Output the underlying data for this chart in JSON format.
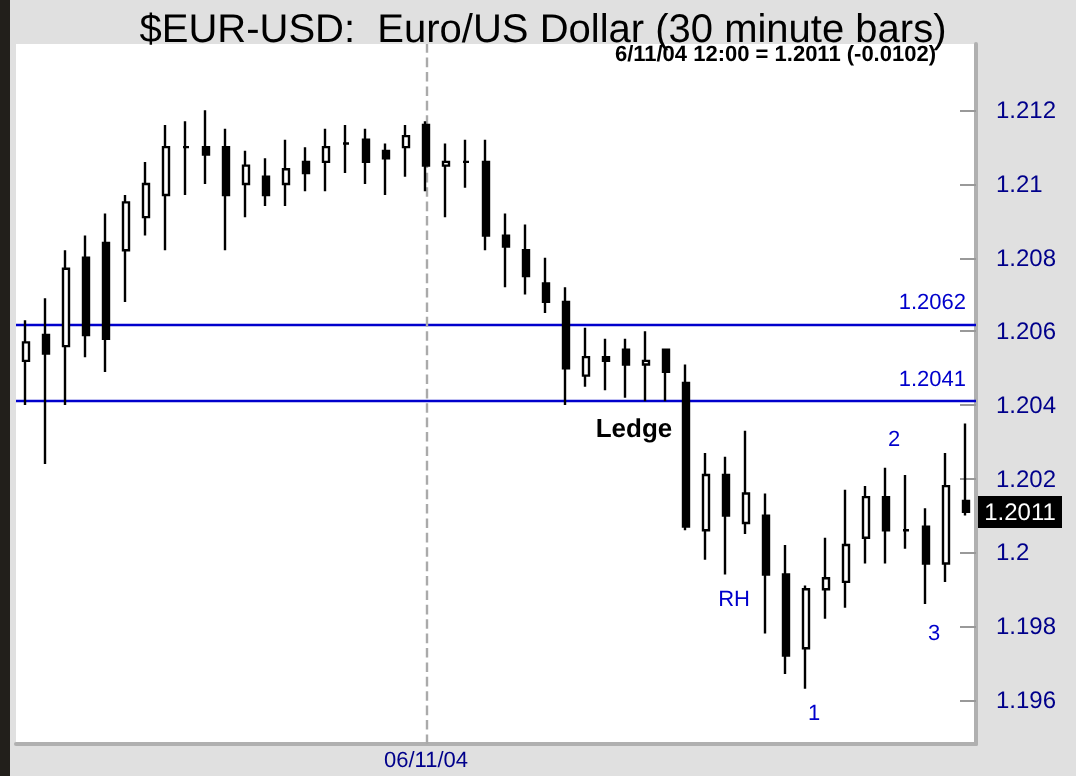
{
  "chart_data": {
    "type": "candlestick",
    "title": "$EUR-USD:  Euro/US Dollar (30 minute bars)",
    "categories": [
      null,
      null,
      null,
      null,
      null,
      null,
      null,
      null,
      null,
      null,
      null,
      null,
      null,
      null,
      null,
      null,
      null,
      null,
      null,
      null,
      "06/11/04",
      null,
      null,
      null,
      null,
      null,
      null,
      null,
      null,
      null,
      null,
      null,
      null,
      null,
      null,
      null,
      null,
      null,
      null,
      null,
      null,
      null,
      null,
      null,
      null,
      null,
      null,
      null
    ],
    "color": "#000000",
    "ohlc": [
      [
        1.2052,
        1.2063,
        1.204,
        1.2057
      ],
      [
        1.2059,
        1.2069,
        1.2024,
        1.2054
      ],
      [
        1.2056,
        1.2082,
        1.204,
        1.2077
      ],
      [
        1.208,
        1.2086,
        1.2053,
        1.2059
      ],
      [
        1.2084,
        1.2092,
        1.2049,
        1.2058
      ],
      [
        1.2082,
        1.2097,
        1.2068,
        1.2095
      ],
      [
        1.2091,
        1.2106,
        1.2086,
        1.21
      ],
      [
        1.2097,
        1.2116,
        1.2082,
        1.211
      ],
      [
        1.211,
        1.2117,
        1.2097,
        1.211
      ],
      [
        1.211,
        1.212,
        1.21,
        1.2108
      ],
      [
        1.211,
        1.2115,
        1.2082,
        1.2097
      ],
      [
        1.21,
        1.2109,
        1.2091,
        1.2105
      ],
      [
        1.2102,
        1.2107,
        1.2094,
        1.2097
      ],
      [
        1.21,
        1.2112,
        1.2094,
        1.2104
      ],
      [
        1.2106,
        1.211,
        1.2098,
        1.2103
      ],
      [
        1.2106,
        1.2115,
        1.2098,
        1.211
      ],
      [
        1.2111,
        1.2116,
        1.2103,
        1.2111
      ],
      [
        1.2112,
        1.2115,
        1.21,
        1.2106
      ],
      [
        1.2109,
        1.2111,
        1.2097,
        1.2107
      ],
      [
        1.211,
        1.2116,
        1.2102,
        1.2113
      ],
      [
        1.2116,
        1.2117,
        1.2098,
        1.2105
      ],
      [
        1.2105,
        1.2111,
        1.2091,
        1.2106
      ],
      [
        1.2106,
        1.2112,
        1.2099,
        1.2106
      ],
      [
        1.2106,
        1.2112,
        1.2082,
        1.2086
      ],
      [
        1.2086,
        1.2092,
        1.2072,
        1.2083
      ],
      [
        1.2082,
        1.2089,
        1.207,
        1.2075
      ],
      [
        1.2073,
        1.208,
        1.2065,
        1.2068
      ],
      [
        1.2068,
        1.2072,
        1.204,
        1.205
      ],
      [
        1.2048,
        1.2061,
        1.2045,
        1.2053
      ],
      [
        1.2053,
        1.2058,
        1.2044,
        1.2052
      ],
      [
        1.2055,
        1.2058,
        1.2042,
        1.2051
      ],
      [
        1.2051,
        1.206,
        1.2041,
        1.2052
      ],
      [
        1.2055,
        1.2055,
        1.2041,
        1.2049
      ],
      [
        1.2046,
        1.2051,
        1.2006,
        1.2007
      ],
      [
        1.2006,
        1.2027,
        1.1998,
        1.2021
      ],
      [
        1.2021,
        1.2026,
        1.1994,
        1.201
      ],
      [
        1.2008,
        1.2033,
        1.2005,
        1.2016
      ],
      [
        1.201,
        1.2016,
        1.1978,
        1.1994
      ],
      [
        1.1994,
        1.2002,
        1.1967,
        1.1972
      ],
      [
        1.1974,
        1.1991,
        1.1963,
        1.199
      ],
      [
        1.199,
        1.2004,
        1.1982,
        1.1993
      ],
      [
        1.1992,
        1.2017,
        1.1985,
        1.2002
      ],
      [
        1.2004,
        1.2018,
        1.1997,
        1.2015
      ],
      [
        1.2015,
        1.2023,
        1.1997,
        1.2006
      ],
      [
        1.2006,
        1.2021,
        1.2001,
        1.2006
      ],
      [
        1.2007,
        1.2012,
        1.1986,
        1.1997
      ],
      [
        1.1997,
        1.2027,
        1.1992,
        1.2018
      ],
      [
        1.2014,
        1.2035,
        1.201,
        1.2011
      ]
    ],
    "ylim": [
      1.1948,
      1.2138
    ],
    "yticks": [
      1.196,
      1.198,
      1.2,
      1.202,
      1.204,
      1.206,
      1.208,
      1.21,
      1.212
    ],
    "ref_lines": [
      {
        "axis": "y",
        "value": 1.2062,
        "label": "1.2062",
        "color": "#0000cc"
      },
      {
        "axis": "y",
        "value": 1.2041,
        "label": "1.2041",
        "color": "#0000cc"
      },
      {
        "axis": "x",
        "value": "06/11/04",
        "color": "#aaaaaa",
        "line_style": "dashed"
      }
    ],
    "annotations": [
      "6/11/04 12:00 = 1.2011 (-0.0102)",
      "Ledge",
      "RH",
      "1",
      "2",
      "3",
      {
        "text": "1.2011",
        "y": 1.2011
      }
    ]
  }
}
